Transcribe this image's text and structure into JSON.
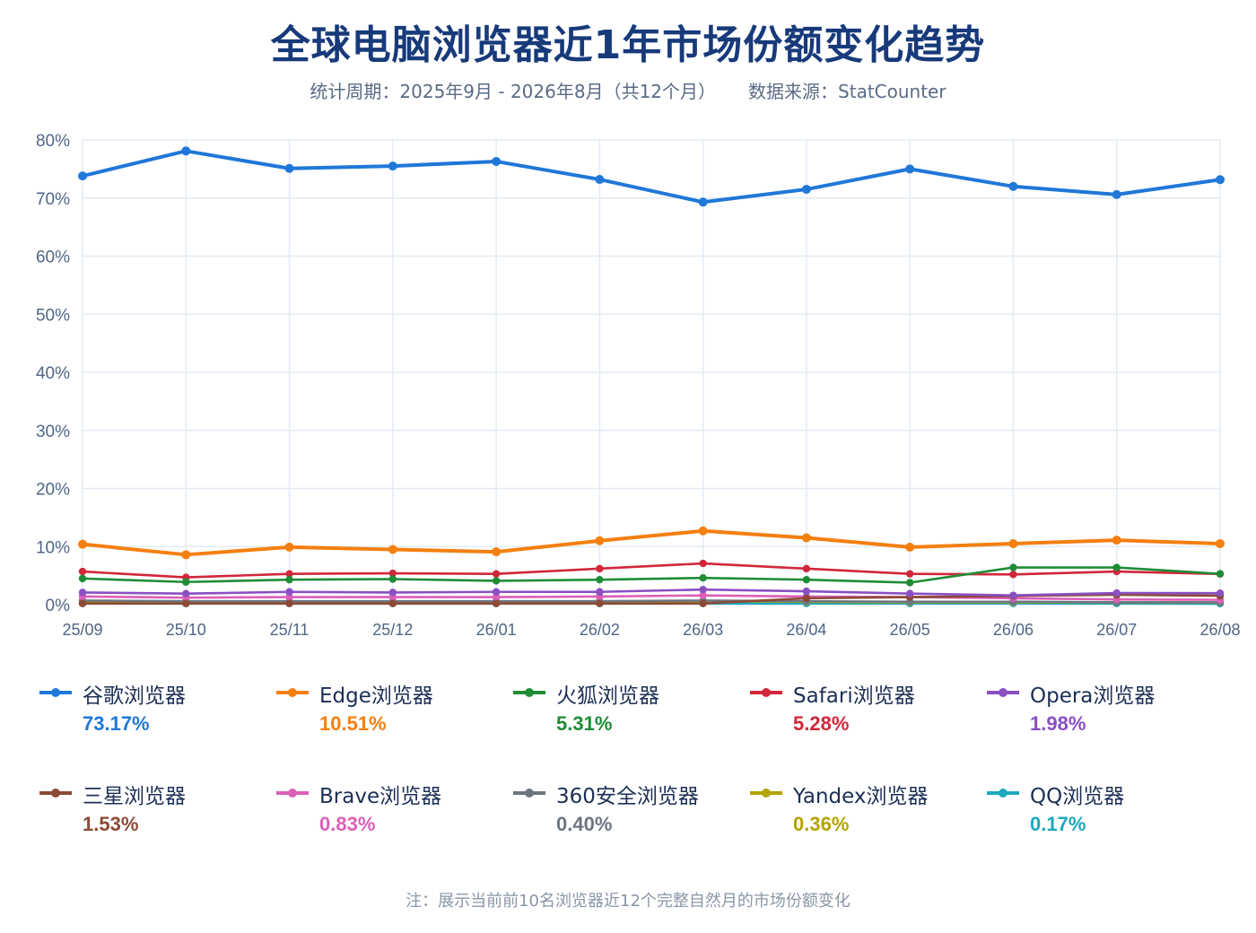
{
  "title": "全球电脑浏览器近1年市场份额变化趋势",
  "subtitle": {
    "period": "统计周期：2025年9月 - 2026年8月（共12个月）",
    "source": "数据来源：StatCounter"
  },
  "footnote": "注：展示当前前10名浏览器近12个完整自然月的市场份额变化",
  "chart_data": {
    "type": "line",
    "categories": [
      "25/09",
      "25/10",
      "25/11",
      "25/12",
      "26/01",
      "26/02",
      "26/03",
      "26/04",
      "26/05",
      "26/06",
      "26/07",
      "26/08"
    ],
    "ylim": [
      0,
      80
    ],
    "yticks": [
      "0%",
      "10%",
      "20%",
      "30%",
      "40%",
      "50%",
      "60%",
      "70%",
      "80%"
    ],
    "grid": true,
    "legend_position": "bottom",
    "series": [
      {
        "name": "谷歌浏览器",
        "current": "73.17%",
        "color": "#1f77d8",
        "values": [
          73.8,
          78.1,
          75.1,
          75.5,
          76.3,
          73.2,
          69.3,
          71.5,
          75.0,
          72.0,
          70.6,
          73.17
        ]
      },
      {
        "name": "Edge浏览器",
        "current": "10.51%",
        "color": "#f57f0f",
        "values": [
          10.4,
          8.6,
          9.9,
          9.5,
          9.1,
          11.0,
          12.7,
          11.5,
          9.9,
          10.5,
          11.1,
          10.51
        ]
      },
      {
        "name": "火狐浏览器",
        "current": "5.31%",
        "color": "#1f8c36",
        "values": [
          4.5,
          3.9,
          4.3,
          4.4,
          4.1,
          4.3,
          4.6,
          4.3,
          3.8,
          6.4,
          6.4,
          5.31
        ]
      },
      {
        "name": "Safari浏览器",
        "current": "5.28%",
        "color": "#d1273a",
        "values": [
          5.7,
          4.7,
          5.3,
          5.4,
          5.3,
          6.2,
          7.1,
          6.2,
          5.3,
          5.2,
          5.7,
          5.28
        ]
      },
      {
        "name": "Opera浏览器",
        "current": "1.98%",
        "color": "#8a4fc3",
        "values": [
          2.1,
          1.9,
          2.2,
          2.1,
          2.2,
          2.2,
          2.6,
          2.3,
          1.9,
          1.6,
          2.0,
          1.98
        ]
      },
      {
        "name": "三星浏览器",
        "current": "1.53%",
        "color": "#8c4a36",
        "values": [
          0.2,
          0.2,
          0.2,
          0.2,
          0.2,
          0.2,
          0.2,
          1.1,
          1.3,
          1.5,
          1.7,
          1.53
        ]
      },
      {
        "name": "Brave浏览器",
        "current": "0.83%",
        "color": "#dc5fb8",
        "values": [
          1.4,
          1.2,
          1.3,
          1.3,
          1.3,
          1.4,
          1.6,
          1.4,
          1.3,
          1.1,
          0.9,
          0.83
        ]
      },
      {
        "name": "360安全浏览器",
        "current": "0.40%",
        "color": "#6d7582",
        "values": [
          0.7,
          0.6,
          0.6,
          0.6,
          0.6,
          0.6,
          0.7,
          0.6,
          0.5,
          0.5,
          0.4,
          0.4
        ]
      },
      {
        "name": "Yandex浏览器",
        "current": "0.36%",
        "color": "#b3a400",
        "values": [
          0.5,
          0.4,
          0.5,
          0.5,
          0.5,
          0.5,
          0.6,
          0.5,
          0.4,
          0.4,
          0.4,
          0.36
        ]
      },
      {
        "name": "QQ浏览器",
        "current": "0.17%",
        "color": "#1ea8bd",
        "values": [
          0.2,
          0.2,
          0.2,
          0.2,
          0.2,
          0.2,
          0.2,
          0.2,
          0.2,
          0.2,
          0.2,
          0.17
        ]
      }
    ]
  }
}
